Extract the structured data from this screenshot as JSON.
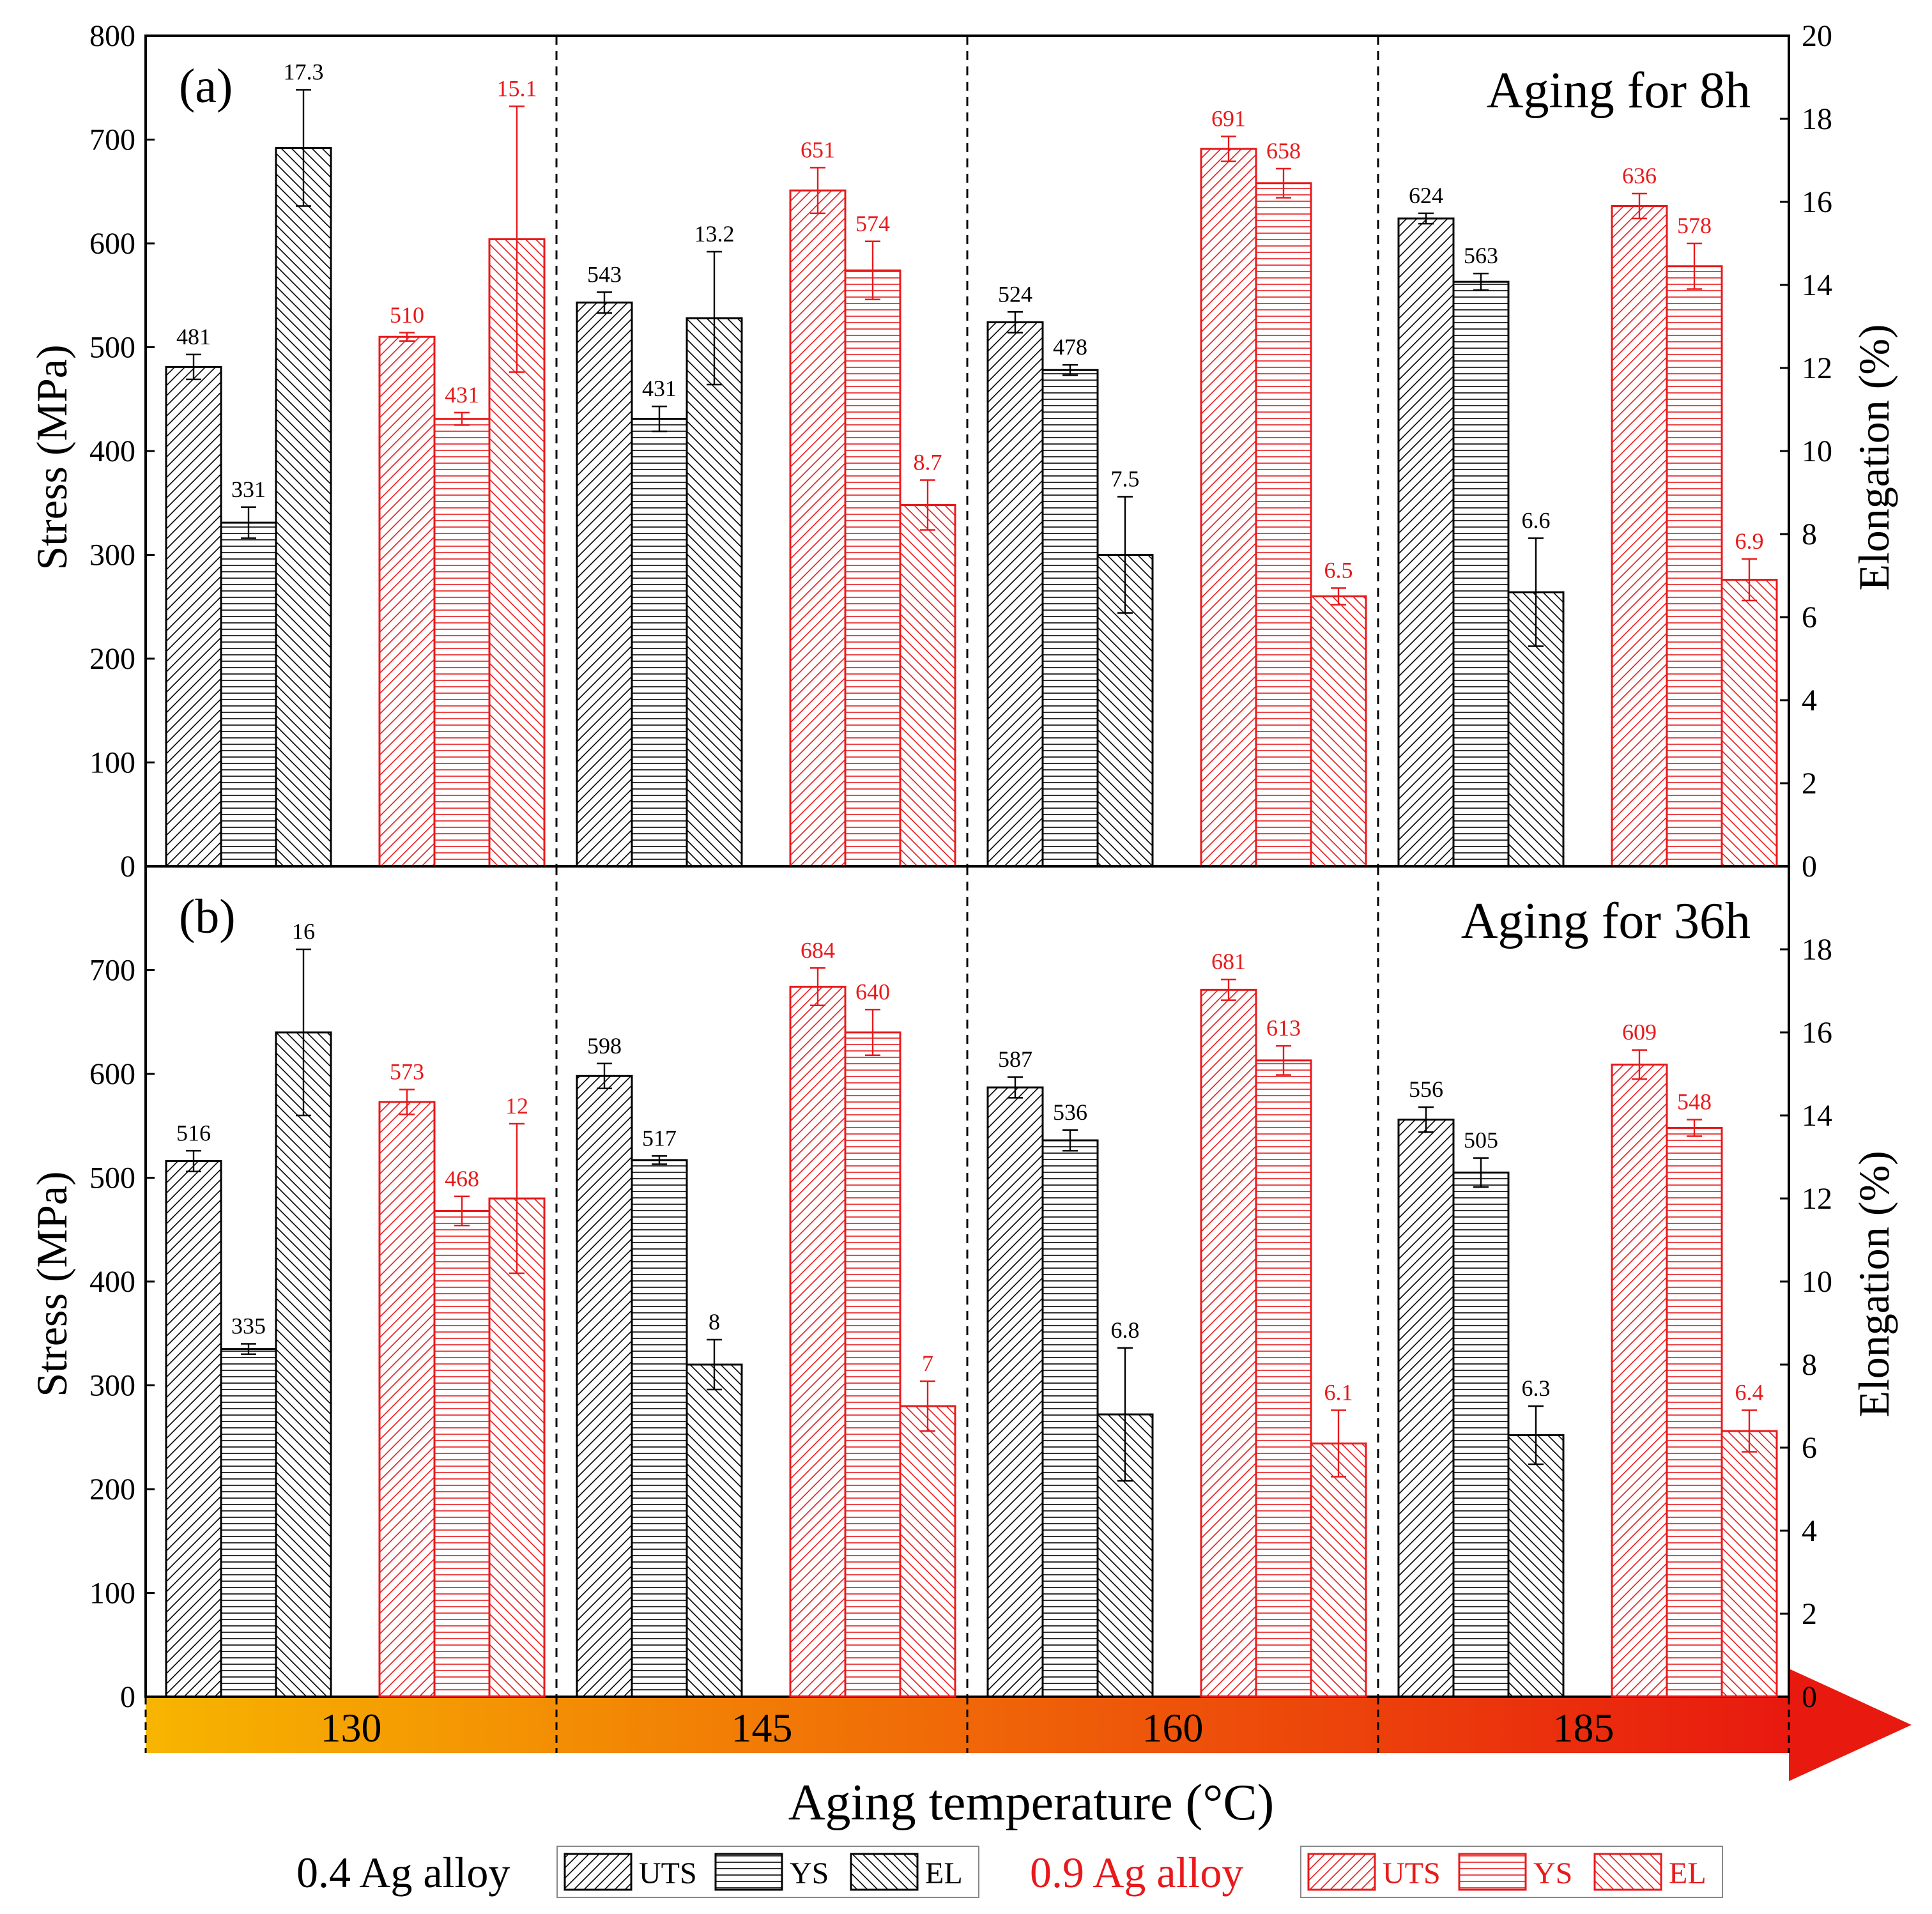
{
  "chart_data": {
    "type": "bar",
    "colors": {
      "ag04": "#000000",
      "ag09": "#e8191b",
      "band_start": "#f7b500",
      "band_end": "#e8190f"
    },
    "categories": [
      "130",
      "145",
      "160",
      "185"
    ],
    "xlabel": "Aging temperature (°C)",
    "left_axis": {
      "label": "Stress (MPa)",
      "ylim": [
        0,
        800
      ],
      "ticks": [
        0,
        100,
        200,
        300,
        400,
        500,
        600,
        700,
        800
      ]
    },
    "right_axis": {
      "label": "Elongation (%)",
      "ylim": [
        0,
        20
      ],
      "ticks": [
        0,
        2,
        4,
        6,
        8,
        10,
        12,
        14,
        16,
        18,
        20
      ]
    },
    "legend": {
      "groups": [
        {
          "name": "0.4 Ag alloy",
          "color_key": "ag04",
          "entries": [
            "UTS",
            "YS",
            "EL"
          ]
        },
        {
          "name": "0.9 Ag alloy",
          "color_key": "ag09",
          "entries": [
            "UTS",
            "YS",
            "EL"
          ]
        }
      ],
      "position": "bottom-center"
    },
    "panels": [
      {
        "label": "(a)",
        "title": "Aging for 8h",
        "alloys": [
          {
            "name": "0.4 Ag alloy",
            "UTS": [
              481,
              543,
              524,
              624
            ],
            "UTS_err": [
              12,
              10,
              10,
              5
            ],
            "YS": [
              331,
              431,
              478,
              563
            ],
            "YS_err": [
              15,
              12,
              5,
              8
            ],
            "EL": [
              17.3,
              13.2,
              7.5,
              6.6
            ],
            "EL_err": [
              1.4,
              1.6,
              1.4,
              1.3
            ],
            "UTS_labels": [
              "481",
              "543",
              "524",
              "624"
            ],
            "YS_labels": [
              "331",
              "431",
              "478",
              "563"
            ],
            "EL_labels": [
              "17.3",
              "13.2",
              "7.5",
              "6.6"
            ]
          },
          {
            "name": "0.9 Ag alloy",
            "UTS": [
              510,
              651,
              691,
              636
            ],
            "UTS_err": [
              4,
              22,
              12,
              12
            ],
            "YS": [
              431,
              574,
              658,
              578
            ],
            "YS_err": [
              6,
              28,
              14,
              22
            ],
            "EL": [
              15.1,
              8.7,
              6.5,
              6.9
            ],
            "EL_err": [
              3.2,
              0.6,
              0.2,
              0.5
            ],
            "UTS_labels": [
              "510",
              "651",
              "691",
              "636"
            ],
            "YS_labels": [
              "431",
              "574",
              "658",
              "578"
            ],
            "EL_labels": [
              "15.1",
              "8.7",
              "6.5",
              "6.9"
            ]
          }
        ]
      },
      {
        "label": "(b)",
        "title": "Aging for 36h",
        "alloys": [
          {
            "name": "0.4 Ag alloy",
            "UTS": [
              516,
              598,
              587,
              556
            ],
            "UTS_err": [
              10,
              12,
              10,
              12
            ],
            "YS": [
              335,
              517,
              536,
              505
            ],
            "YS_err": [
              5,
              4,
              10,
              14
            ],
            "EL": [
              16,
              8,
              6.8,
              6.3
            ],
            "EL_err": [
              2,
              0.6,
              1.6,
              0.7
            ],
            "UTS_labels": [
              "516",
              "598",
              "587",
              "556"
            ],
            "YS_labels": [
              "335",
              "517",
              "536",
              "505"
            ],
            "EL_labels": [
              "16",
              "8",
              "6.8",
              "6.3"
            ]
          },
          {
            "name": "0.9 Ag alloy",
            "UTS": [
              573,
              684,
              681,
              609
            ],
            "UTS_err": [
              12,
              18,
              10,
              14
            ],
            "YS": [
              468,
              640,
              613,
              548
            ],
            "YS_err": [
              14,
              22,
              14,
              8
            ],
            "EL": [
              12,
              7,
              6.1,
              6.4
            ],
            "EL_err": [
              1.8,
              0.6,
              0.8,
              0.5
            ],
            "UTS_labels": [
              "573",
              "684",
              "681",
              "609"
            ],
            "YS_labels": [
              "468",
              "640",
              "613",
              "548"
            ],
            "EL_labels": [
              "12",
              "7",
              "6.1",
              "6.4"
            ]
          }
        ]
      }
    ]
  }
}
